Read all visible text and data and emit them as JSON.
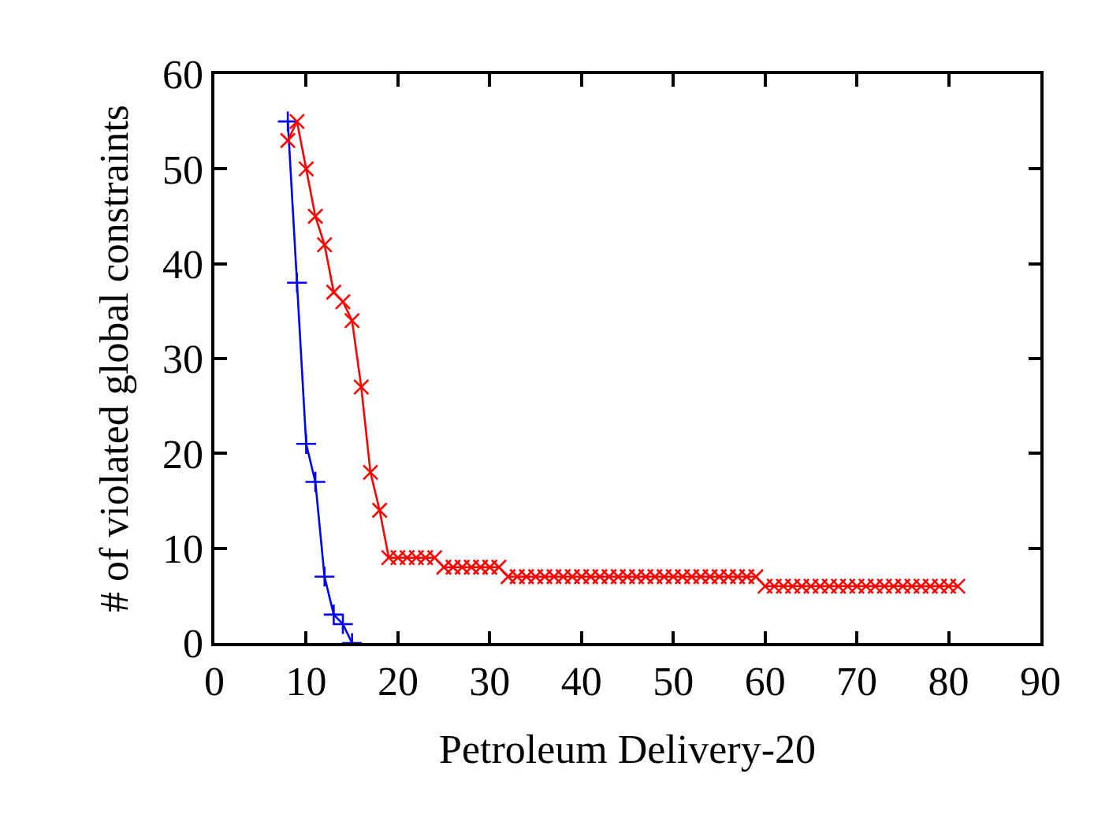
{
  "chart_data": {
    "type": "line",
    "xlabel": "Petroleum Delivery-20",
    "ylabel": "# of violated global constraints",
    "xlim": [
      0,
      90
    ],
    "xticks": [
      0,
      10,
      20,
      30,
      40,
      50,
      60,
      70,
      80,
      90
    ],
    "ylim": [
      0,
      60
    ],
    "yticks": [
      0,
      10,
      20,
      30,
      40,
      50,
      60
    ],
    "grid": false,
    "series": [
      {
        "color": "#0000ff",
        "marker": "cross",
        "x": [
          8,
          9,
          10,
          11,
          12,
          13,
          14,
          15
        ],
        "values": [
          55,
          38,
          21,
          17,
          7,
          3,
          2,
          0
        ]
      },
      {
        "color": "#ff0000",
        "marker": "x",
        "x": [
          8,
          9,
          10,
          11,
          12,
          13,
          14,
          15,
          16,
          17,
          18,
          19,
          20,
          21,
          22,
          23,
          24,
          25,
          26,
          27,
          28,
          29,
          30,
          31,
          32,
          33,
          34,
          35,
          36,
          37,
          38,
          39,
          40,
          41,
          42,
          43,
          44,
          45,
          46,
          47,
          48,
          49,
          50,
          51,
          52,
          53,
          54,
          55,
          56,
          57,
          58,
          59,
          60,
          61,
          62,
          63,
          64,
          65,
          66,
          67,
          68,
          69,
          70,
          71,
          72,
          73,
          74,
          75,
          76,
          77,
          78,
          79,
          80,
          81
        ],
        "values": [
          53,
          55,
          50,
          45,
          42,
          37,
          36,
          34,
          27,
          18,
          14,
          9,
          9,
          9,
          9,
          9,
          9,
          8,
          8,
          8,
          8,
          8,
          8,
          8,
          7,
          7,
          7,
          7,
          7,
          7,
          7,
          7,
          7,
          7,
          7,
          7,
          7,
          7,
          7,
          7,
          7,
          7,
          7,
          7,
          7,
          7,
          7,
          7,
          7,
          7,
          7,
          7,
          6,
          6,
          6,
          6,
          6,
          6,
          6,
          6,
          6,
          6,
          6,
          6,
          6,
          6,
          6,
          6,
          6,
          6,
          6,
          6,
          6,
          6
        ]
      }
    ]
  }
}
